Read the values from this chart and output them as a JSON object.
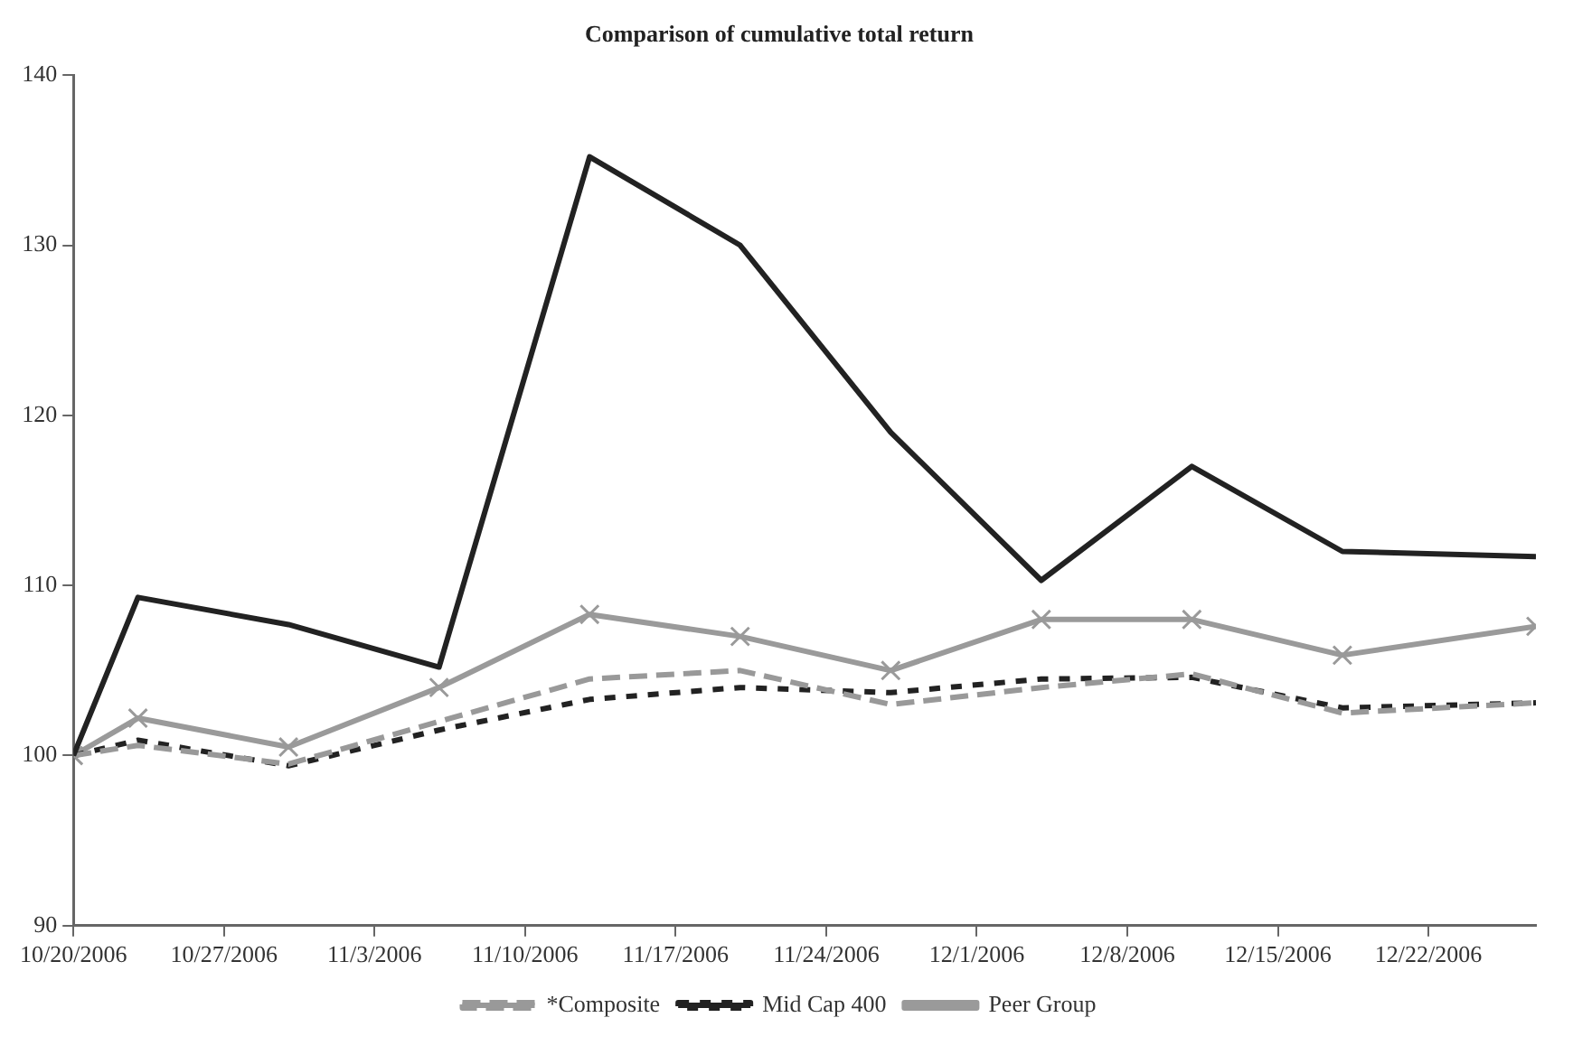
{
  "chart_data": {
    "type": "line",
    "title": "Comparison of cumulative total return",
    "x": [
      "2006-10-20",
      "2006-10-23",
      "2006-10-30",
      "2006-11-06",
      "2006-11-13",
      "2006-11-20",
      "2006-11-27",
      "2006-12-04",
      "2006-12-11",
      "2006-12-18",
      "2006-12-27"
    ],
    "series": [
      {
        "color": "#222222",
        "line_style": "solid",
        "marker": "none",
        "values": [
          100,
          109.3,
          107.7,
          105.2,
          135.2,
          130,
          119,
          110.3,
          117,
          112,
          111.7
        ]
      },
      {
        "name": "*Composite",
        "color": "#999999",
        "line_style": "dashed",
        "marker": "none",
        "values": [
          100,
          100.6,
          99.5,
          102,
          104.5,
          105,
          103,
          104,
          104.8,
          102.5,
          103.1
        ]
      },
      {
        "name": "Mid Cap 400",
        "color": "#222222",
        "line_style": "dotted",
        "marker": "none",
        "values": [
          100,
          100.9,
          99.4,
          101.5,
          103.3,
          104,
          103.7,
          104.5,
          104.6,
          102.8,
          103.1
        ]
      },
      {
        "name": "Peer Group",
        "color": "#9a9a9a",
        "line_style": "solid",
        "marker": "cross",
        "values": [
          100,
          102.2,
          100.5,
          104,
          108.3,
          107,
          105,
          108,
          108,
          105.9,
          107.6
        ]
      }
    ],
    "xlim": [
      "2006-10-20",
      "2006-12-27"
    ],
    "xticks": [
      {
        "value": "2006-10-20",
        "label": "10/20/2006"
      },
      {
        "value": "2006-10-27",
        "label": "10/27/2006"
      },
      {
        "value": "2006-11-03",
        "label": "11/3/2006"
      },
      {
        "value": "2006-11-10",
        "label": "11/10/2006"
      },
      {
        "value": "2006-11-17",
        "label": "11/17/2006"
      },
      {
        "value": "2006-11-24",
        "label": "11/24/2006"
      },
      {
        "value": "2006-12-01",
        "label": "12/1/2006"
      },
      {
        "value": "2006-12-08",
        "label": "12/8/2006"
      },
      {
        "value": "2006-12-15",
        "label": "12/15/2006"
      },
      {
        "value": "2006-12-22",
        "label": "12/22/2006"
      }
    ],
    "ylim": [
      90,
      140
    ],
    "yticks": [
      90,
      100,
      110,
      120,
      130,
      140
    ],
    "grid": false,
    "legend": "bottom"
  }
}
